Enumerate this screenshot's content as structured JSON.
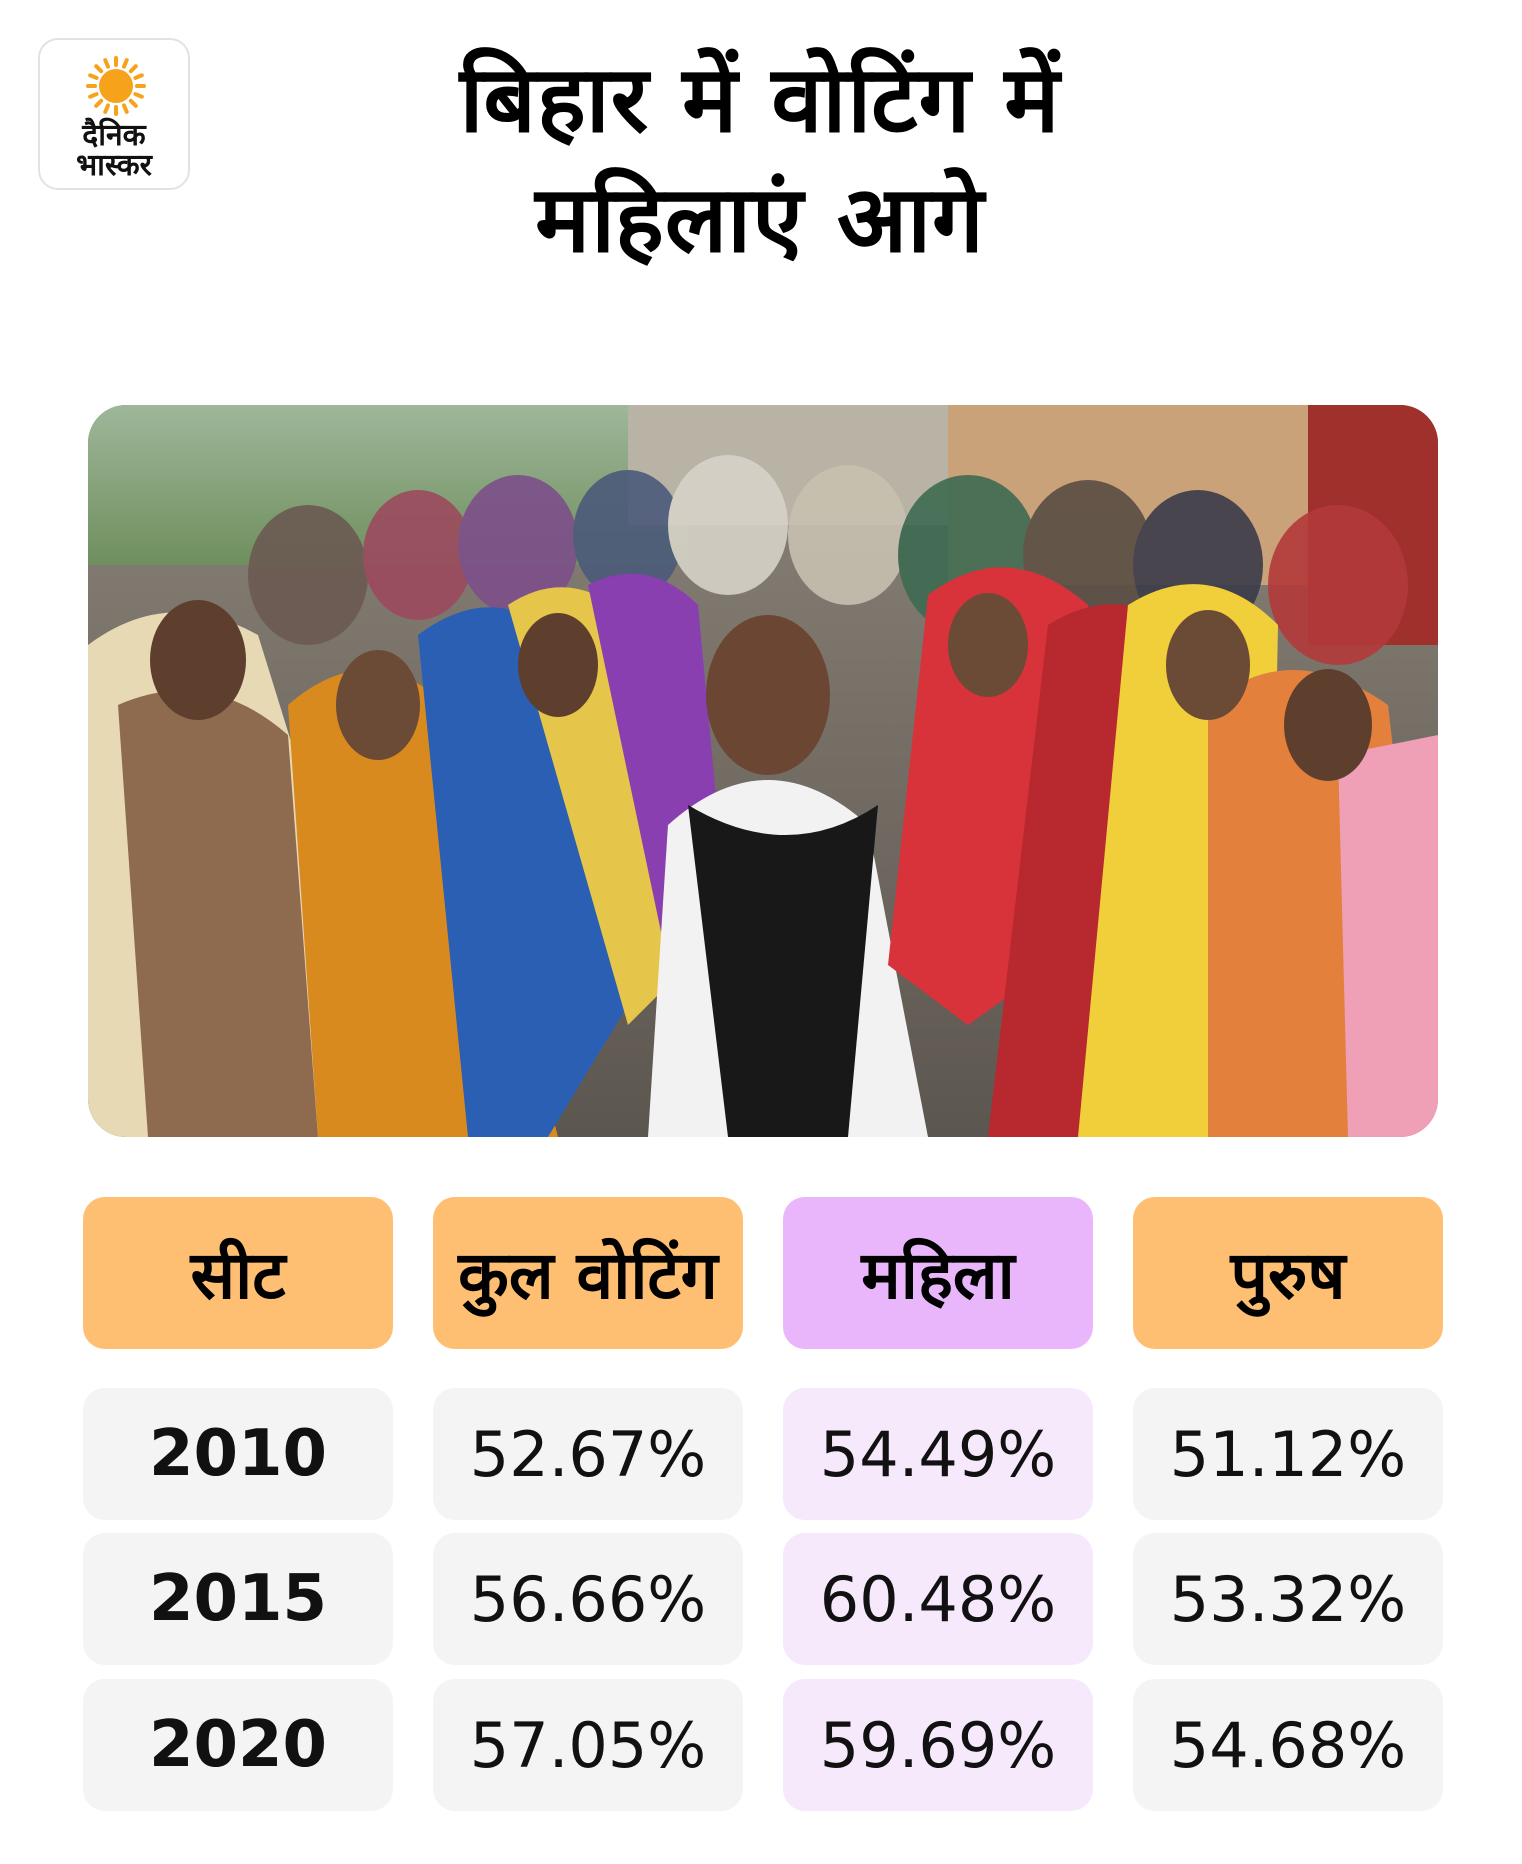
{
  "brand": {
    "line1": "दैनिक",
    "line2": "भास्कर",
    "sun_color": "#f7a21b"
  },
  "title": {
    "line1": "बिहार में वोटिंग में",
    "line2": "महिलाएं आगे"
  },
  "chart_data": {
    "type": "table",
    "columns": [
      "सीट",
      "कुल वोटिंग",
      "महिला",
      "पुरुष"
    ],
    "highlight_column": "महिला",
    "highlight_color": "#e9b6fb",
    "header_color": "#ffbf73",
    "rows": [
      [
        "2010",
        "52.67%",
        "54.49%",
        "51.12%"
      ],
      [
        "2015",
        "56.66%",
        "60.48%",
        "53.32%"
      ],
      [
        "2020",
        "57.05%",
        "59.69%",
        "54.68%"
      ]
    ]
  }
}
